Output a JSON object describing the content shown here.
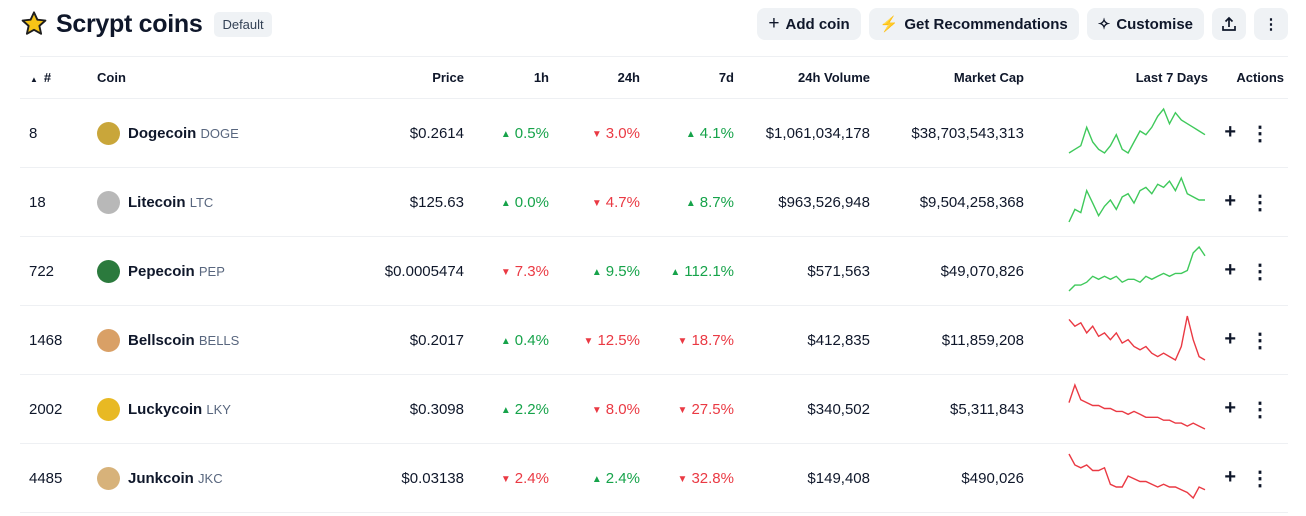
{
  "header": {
    "title": "Scrypt coins",
    "badge": "Default",
    "buttons": {
      "add": "Add coin",
      "recommend": "Get Recommendations",
      "customise": "Customise"
    }
  },
  "columns": {
    "rank": "#",
    "coin": "Coin",
    "price": "Price",
    "h1": "1h",
    "h24": "24h",
    "d7": "7d",
    "volume": "24h Volume",
    "mcap": "Market Cap",
    "spark": "Last 7 Days",
    "actions": "Actions"
  },
  "colors": {
    "up": "#16a34a",
    "down": "#ea3943",
    "spark_up": "#3fc95b",
    "spark_down": "#ea3943"
  },
  "rows": [
    {
      "rank": "8",
      "name": "Dogecoin",
      "symbol": "DOGE",
      "icon": "#c9a63a",
      "price": "$0.2614",
      "h1": "0.5%",
      "h1_up": true,
      "h24": "3.0%",
      "h24_up": false,
      "d7": "4.1%",
      "d7_up": true,
      "volume": "$1,061,034,178",
      "mcap": "$38,703,543,313",
      "spark": [
        2,
        3,
        4,
        9,
        5,
        3,
        2,
        4,
        7,
        3,
        2,
        5,
        8,
        7,
        9,
        12,
        14,
        10,
        13,
        11,
        10,
        9,
        8,
        7
      ]
    },
    {
      "rank": "18",
      "name": "Litecoin",
      "symbol": "LTC",
      "icon": "#b8b8b8",
      "price": "$125.63",
      "h1": "0.0%",
      "h1_up": true,
      "h24": "4.7%",
      "h24_up": false,
      "d7": "8.7%",
      "d7_up": true,
      "volume": "$963,526,948",
      "mcap": "$9,504,258,368",
      "spark": [
        1,
        5,
        4,
        11,
        7,
        3,
        6,
        8,
        5,
        9,
        10,
        7,
        11,
        12,
        10,
        13,
        12,
        14,
        11,
        15,
        10,
        9,
        8,
        8
      ]
    },
    {
      "rank": "722",
      "name": "Pepecoin",
      "symbol": "PEP",
      "icon": "#2b7a3d",
      "price": "$0.0005474",
      "h1": "7.3%",
      "h1_up": false,
      "h24": "9.5%",
      "h24_up": true,
      "d7": "112.1%",
      "d7_up": true,
      "volume": "$571,563",
      "mcap": "$49,070,826",
      "spark": [
        1,
        3,
        3,
        4,
        6,
        5,
        6,
        5,
        6,
        4,
        5,
        5,
        4,
        6,
        5,
        6,
        7,
        6,
        7,
        7,
        8,
        14,
        16,
        13
      ]
    },
    {
      "rank": "1468",
      "name": "Bellscoin",
      "symbol": "BELLS",
      "icon": "#d9a066",
      "price": "$0.2017",
      "h1": "0.4%",
      "h1_up": true,
      "h24": "12.5%",
      "h24_up": false,
      "d7": "18.7%",
      "d7_up": false,
      "volume": "$412,835",
      "mcap": "$11,859,208",
      "spark": [
        14,
        12,
        13,
        10,
        12,
        9,
        10,
        8,
        10,
        7,
        8,
        6,
        5,
        6,
        4,
        3,
        4,
        3,
        2,
        6,
        15,
        8,
        3,
        2
      ]
    },
    {
      "rank": "2002",
      "name": "Luckycoin",
      "symbol": "LKY",
      "icon": "#e8b923",
      "price": "$0.3098",
      "h1": "2.2%",
      "h1_up": true,
      "h24": "8.0%",
      "h24_up": false,
      "d7": "27.5%",
      "d7_up": false,
      "volume": "$340,502",
      "mcap": "$5,311,843",
      "spark": [
        10,
        16,
        11,
        10,
        9,
        9,
        8,
        8,
        7,
        7,
        6,
        7,
        6,
        5,
        5,
        5,
        4,
        4,
        3,
        3,
        2,
        3,
        2,
        1
      ]
    },
    {
      "rank": "4485",
      "name": "Junkcoin",
      "symbol": "JKC",
      "icon": "#d7b27a",
      "price": "$0.03138",
      "h1": "2.4%",
      "h1_up": false,
      "h24": "2.4%",
      "h24_up": true,
      "d7": "32.8%",
      "d7_up": false,
      "volume": "$149,408",
      "mcap": "$490,026",
      "spark": [
        16,
        12,
        11,
        12,
        10,
        10,
        11,
        5,
        4,
        4,
        8,
        7,
        6,
        6,
        5,
        4,
        5,
        4,
        4,
        3,
        2,
        0,
        4,
        3
      ]
    }
  ]
}
